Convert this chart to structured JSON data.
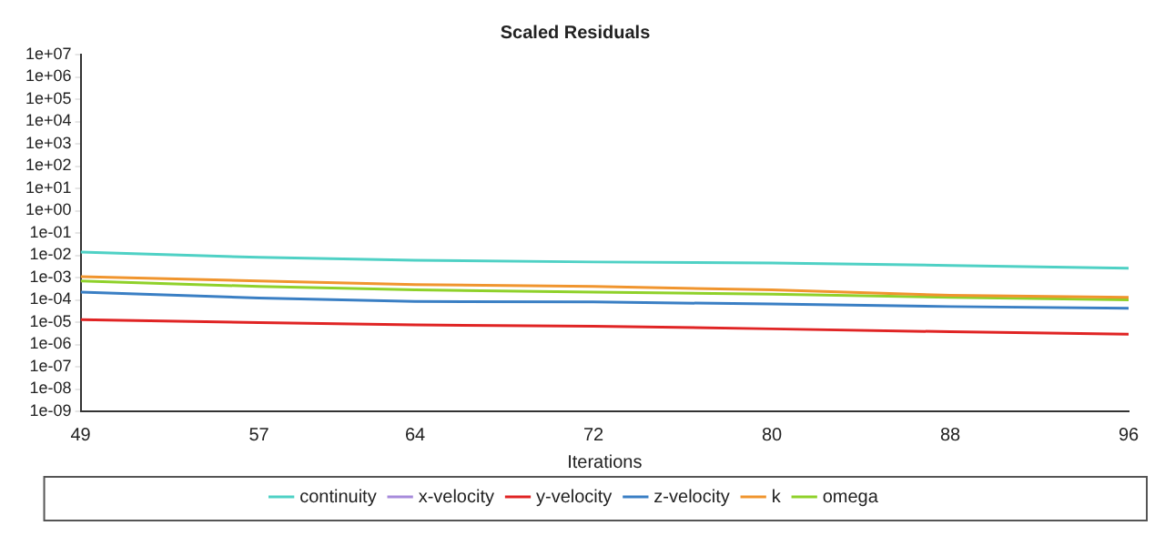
{
  "chart_data": {
    "type": "line",
    "title": "Scaled Residuals",
    "xlabel": "Iterations",
    "x": [
      49,
      57,
      64,
      72,
      80,
      88,
      96
    ],
    "series": [
      {
        "name": "continuity",
        "color": "#4fd1c5",
        "values": [
          0.014,
          0.008,
          0.006,
          0.005,
          0.0045,
          0.0035,
          0.0026
        ]
      },
      {
        "name": "x-velocity",
        "color": "#a78bdb",
        "values": [
          null,
          null,
          null,
          null,
          null,
          null,
          null
        ]
      },
      {
        "name": "y-velocity",
        "color": "#e02424",
        "values": [
          1.3e-05,
          9.5e-06,
          7.5e-06,
          6.6e-06,
          5e-06,
          3.7e-06,
          2.9e-06
        ]
      },
      {
        "name": "z-velocity",
        "color": "#3a7fc4",
        "values": [
          0.00022,
          0.00012,
          8.5e-05,
          8e-05,
          6.5e-05,
          5e-05,
          4.2e-05
        ]
      },
      {
        "name": "k",
        "color": "#f0952e",
        "values": [
          0.0011,
          0.0007,
          0.00048,
          0.0004,
          0.00028,
          0.00016,
          0.00013
        ]
      },
      {
        "name": "omega",
        "color": "#8fd12a",
        "values": [
          0.0007,
          0.0004,
          0.00028,
          0.00022,
          0.00018,
          0.00013,
          0.0001
        ]
      }
    ],
    "xlim": [
      49,
      96
    ],
    "xticks": [
      49,
      57,
      64,
      72,
      80,
      88,
      96
    ],
    "ylim": [
      1e-09,
      10000000.0
    ],
    "yticks": [
      {
        "value": 1e-09,
        "label": "1e-09"
      },
      {
        "value": 1e-08,
        "label": "1e-08"
      },
      {
        "value": 1e-07,
        "label": "1e-07"
      },
      {
        "value": 1e-06,
        "label": "1e-06"
      },
      {
        "value": 1e-05,
        "label": "1e-05"
      },
      {
        "value": 0.0001,
        "label": "1e-04"
      },
      {
        "value": 0.001,
        "label": "1e-03"
      },
      {
        "value": 0.01,
        "label": "1e-02"
      },
      {
        "value": 0.1,
        "label": "1e-01"
      },
      {
        "value": 1,
        "label": "1e+00"
      },
      {
        "value": 10,
        "label": "1e+01"
      },
      {
        "value": 100,
        "label": "1e+02"
      },
      {
        "value": 1000,
        "label": "1e+03"
      },
      {
        "value": 10000,
        "label": "1e+04"
      },
      {
        "value": 100000,
        "label": "1e+05"
      },
      {
        "value": 1000000,
        "label": "1e+06"
      },
      {
        "value": 10000000,
        "label": "1e+07"
      }
    ],
    "log": "y",
    "grid": false,
    "legend": "bottom",
    "marker": "none",
    "line_style": "solid"
  }
}
